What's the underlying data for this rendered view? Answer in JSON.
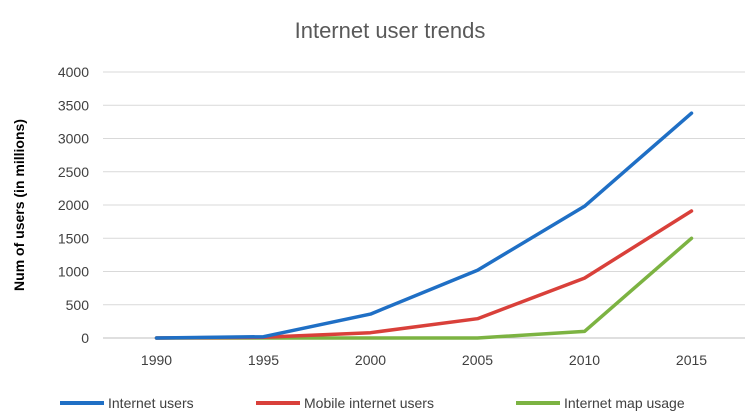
{
  "chart_data": {
    "type": "line",
    "title": "Internet user trends",
    "xlabel": "",
    "ylabel": "Num of users (in millions)",
    "categories": [
      "1990",
      "1995",
      "2000",
      "2005",
      "2010",
      "2015"
    ],
    "ylim": [
      0,
      4000
    ],
    "yticks": [
      "0",
      "500",
      "1000",
      "1500",
      "2000",
      "2500",
      "3000",
      "3500",
      "4000"
    ],
    "grid": true,
    "legend_position": "bottom",
    "series": [
      {
        "name": "Internet users",
        "color": "#1f6fc5",
        "values": [
          0,
          20,
          360,
          1020,
          1980,
          3380
        ]
      },
      {
        "name": "Mobile internet users",
        "color": "#d9403a",
        "values": [
          0,
          10,
          80,
          290,
          900,
          1910
        ]
      },
      {
        "name": "Internet map usage",
        "color": "#7cb342",
        "values": [
          0,
          0,
          0,
          0,
          100,
          1500
        ]
      }
    ]
  }
}
